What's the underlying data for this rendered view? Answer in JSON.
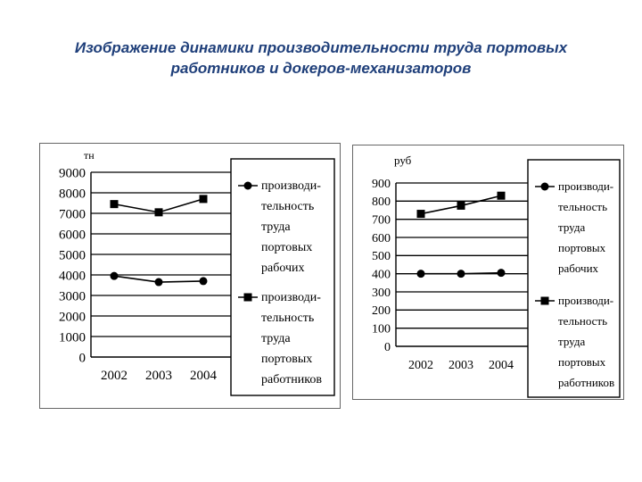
{
  "title_lines": [
    "Изображение динамики производительности труда портовых",
    "работников и докеров-механизаторов"
  ],
  "chart_data": [
    {
      "type": "line",
      "unit_label": "тн",
      "categories": [
        "2002",
        "2003",
        "2004"
      ],
      "yticks": [
        "9000",
        "8000",
        "7000",
        "6000",
        "5000",
        "4000",
        "3000",
        "2000",
        "1000",
        "0"
      ],
      "ylim": [
        0,
        9000
      ],
      "grid": true,
      "legend_position": "right",
      "series": [
        {
          "name_lines": [
            "производи-",
            "тельность",
            "труда",
            "портовых",
            "рабочих"
          ],
          "marker": "circle",
          "values": [
            3950,
            3650,
            3700
          ]
        },
        {
          "name_lines": [
            "производи-",
            "тельность",
            "труда",
            "портовых",
            "работников"
          ],
          "marker": "square",
          "values": [
            7450,
            7050,
            7700
          ]
        }
      ]
    },
    {
      "type": "line",
      "unit_label": "руб",
      "categories": [
        "2002",
        "2003",
        "2004"
      ],
      "yticks": [
        "900",
        "800",
        "700",
        "600",
        "500",
        "400",
        "300",
        "200",
        "100",
        "0"
      ],
      "ylim": [
        0,
        900
      ],
      "grid": true,
      "legend_position": "right",
      "series": [
        {
          "name_lines": [
            "производи-",
            "тельность",
            "труда",
            "портовых",
            "рабочих"
          ],
          "marker": "circle",
          "values": [
            400,
            400,
            405
          ]
        },
        {
          "name_lines": [
            "производи-",
            "тельность",
            "труда",
            "портовых",
            "работников"
          ],
          "marker": "square",
          "values": [
            730,
            775,
            830
          ]
        }
      ]
    }
  ]
}
